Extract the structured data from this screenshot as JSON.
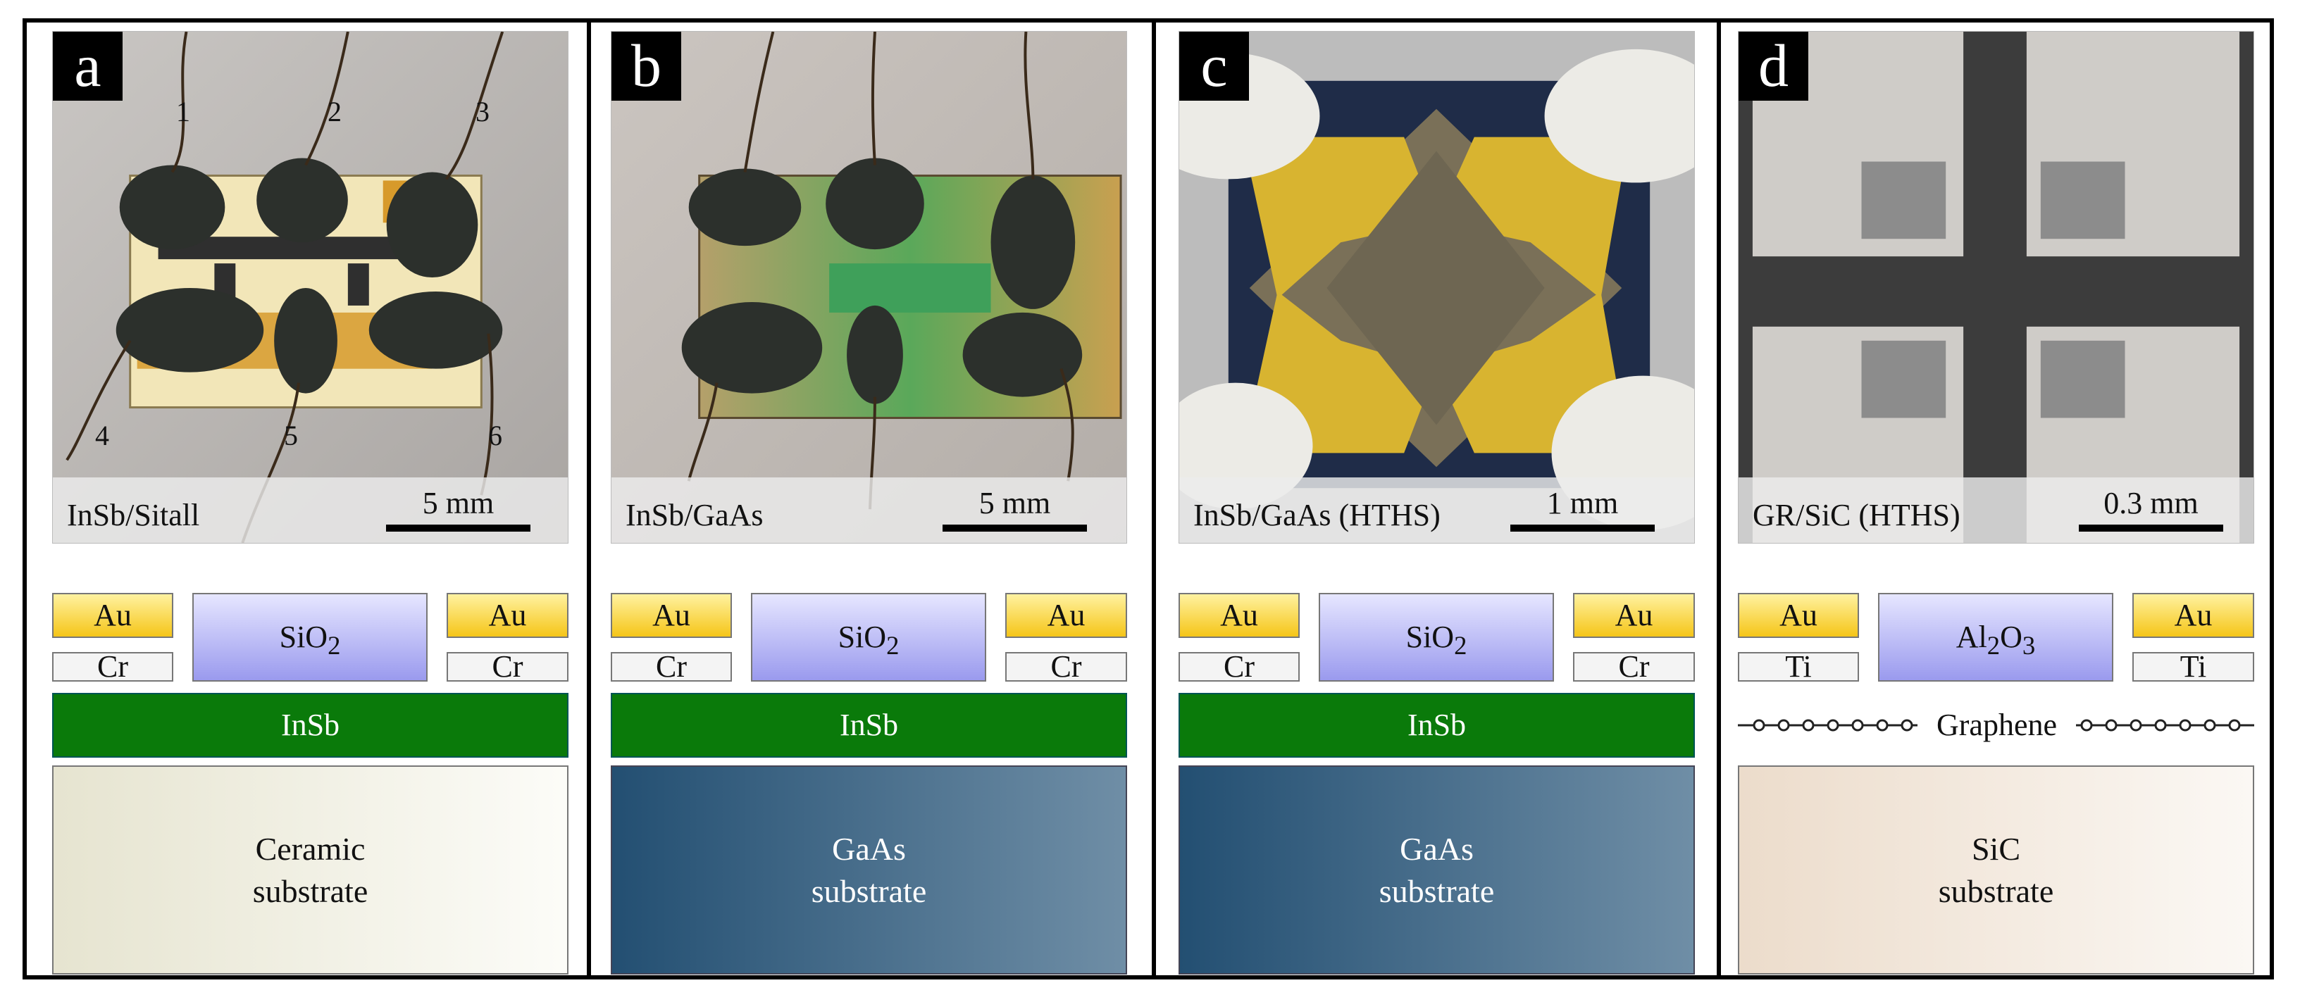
{
  "panels": [
    {
      "letter": "a",
      "caption": "InSb/Sitall",
      "scale": "5 mm",
      "wire_numbers": [
        "1",
        "2",
        "3",
        "4",
        "5",
        "6"
      ],
      "stack": {
        "contact": "Au",
        "adhesion": "Cr",
        "oxide": "SiO",
        "oxide_sub": "2",
        "oxide_tail": "",
        "channel": "InSb",
        "substrate_line1": "Ceramic",
        "substrate_line2": "substrate"
      }
    },
    {
      "letter": "b",
      "caption": "InSb/GaAs",
      "scale": "5 mm",
      "stack": {
        "contact": "Au",
        "adhesion": "Cr",
        "oxide": "SiO",
        "oxide_sub": "2",
        "oxide_tail": "",
        "channel": "InSb",
        "substrate_line1": "GaAs",
        "substrate_line2": "substrate"
      }
    },
    {
      "letter": "c",
      "caption": "InSb/GaAs (HTHS)",
      "scale": "1 mm",
      "stack": {
        "contact": "Au",
        "adhesion": "Cr",
        "oxide": "SiO",
        "oxide_sub": "2",
        "oxide_tail": "",
        "channel": "InSb",
        "substrate_line1": "GaAs",
        "substrate_line2": "substrate"
      }
    },
    {
      "letter": "d",
      "caption": "GR/SiC (HTHS)",
      "scale": "0.3 mm",
      "stack": {
        "contact": "Au",
        "adhesion": "Ti",
        "oxide": "Al",
        "oxide_sub": "2",
        "oxide_tail": "O",
        "oxide_sub2": "3",
        "channel": "Graphene",
        "substrate_line1": "SiC",
        "substrate_line2": "substrate"
      }
    }
  ],
  "colors": {
    "gold": "#f5c518",
    "oxide": "#9a9aee",
    "insb": "#0a7a0a",
    "gaas": "#234f72"
  }
}
